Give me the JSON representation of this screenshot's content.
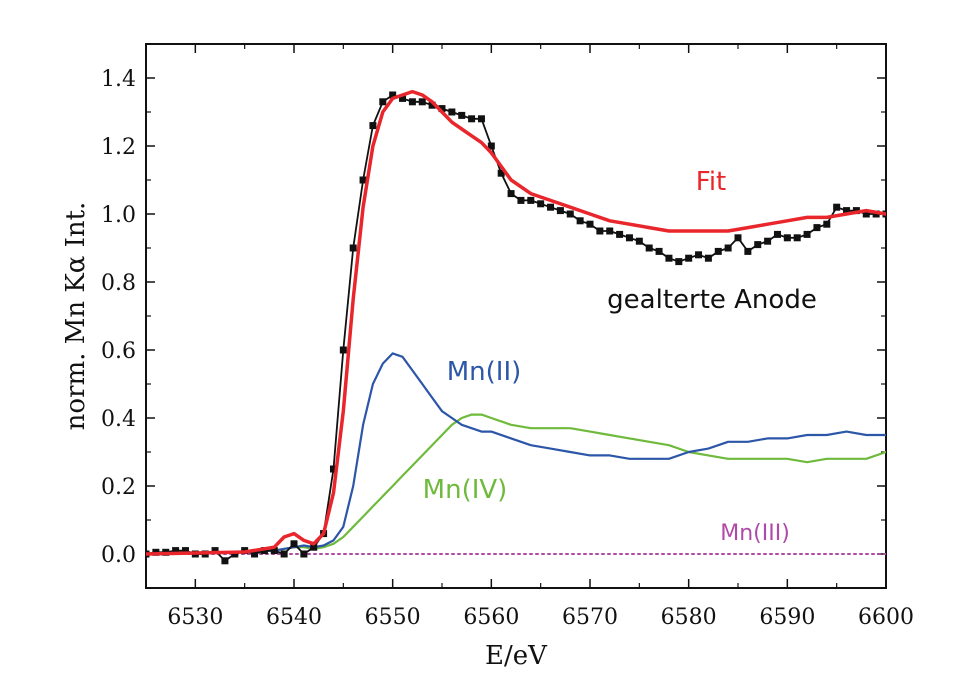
{
  "chart_data": {
    "type": "line",
    "title": "",
    "xlabel": "E/eV",
    "ylabel": "norm. Mn Kα Int.",
    "xlim": [
      6525,
      6600
    ],
    "ylim": [
      -0.1,
      1.5
    ],
    "x_ticks": [
      "6530",
      "6540",
      "6550",
      "6560",
      "6570",
      "6580",
      "6590",
      "6600"
    ],
    "y_ticks": [
      "0.0",
      "0.2",
      "0.4",
      "0.6",
      "0.8",
      "1.0",
      "1.2",
      "1.4"
    ],
    "grid": false,
    "legend": "none",
    "annotations": [
      {
        "text": "Fit",
        "color": "#e8262b",
        "series": "Fit"
      },
      {
        "text": "gealterte Anode",
        "color": "#111111",
        "series": "gealterte Anode"
      },
      {
        "text": "Mn(II)",
        "color": "#2c56a8",
        "series": "Mn(II)"
      },
      {
        "text": "Mn(IV)",
        "color": "#6fba3c",
        "series": "Mn(IV)"
      },
      {
        "text": "Mn(III)",
        "color": "#b04aa8",
        "series": "Mn(III)"
      }
    ],
    "series": [
      {
        "name": "gealterte Anode",
        "color": "#111111",
        "style": "line+markers",
        "x": [
          6525,
          6526,
          6527,
          6528,
          6529,
          6530,
          6531,
          6532,
          6533,
          6534,
          6535,
          6536,
          6537,
          6538,
          6539,
          6540,
          6541,
          6542,
          6543,
          6544,
          6545,
          6546,
          6547,
          6548,
          6549,
          6550,
          6551,
          6552,
          6553,
          6554,
          6555,
          6556,
          6557,
          6558,
          6559,
          6560,
          6561,
          6562,
          6563,
          6564,
          6565,
          6566,
          6567,
          6568,
          6569,
          6570,
          6571,
          6572,
          6573,
          6574,
          6575,
          6576,
          6577,
          6578,
          6579,
          6580,
          6581,
          6582,
          6583,
          6584,
          6585,
          6586,
          6587,
          6588,
          6589,
          6590,
          6591,
          6592,
          6593,
          6594,
          6595,
          6596,
          6597,
          6598,
          6599,
          6600
        ],
        "y": [
          0.0,
          0.005,
          0.005,
          0.01,
          0.01,
          0.0,
          0.0,
          0.01,
          -0.02,
          0.0,
          0.01,
          0.0,
          0.01,
          0.01,
          0.0,
          0.03,
          0.0,
          0.02,
          0.06,
          0.25,
          0.6,
          0.9,
          1.1,
          1.26,
          1.33,
          1.35,
          1.34,
          1.33,
          1.33,
          1.32,
          1.31,
          1.3,
          1.29,
          1.28,
          1.28,
          1.2,
          1.12,
          1.06,
          1.04,
          1.04,
          1.03,
          1.02,
          1.01,
          1.0,
          0.98,
          0.97,
          0.95,
          0.95,
          0.94,
          0.93,
          0.92,
          0.9,
          0.89,
          0.87,
          0.86,
          0.87,
          0.88,
          0.87,
          0.89,
          0.9,
          0.93,
          0.89,
          0.91,
          0.92,
          0.94,
          0.93,
          0.93,
          0.94,
          0.96,
          0.97,
          1.02,
          1.01,
          1.01,
          1.0,
          1.0,
          1.0
        ]
      },
      {
        "name": "Fit",
        "color": "#e8262b",
        "style": "line",
        "x": [
          6525,
          6530,
          6535,
          6538,
          6539,
          6540,
          6541,
          6542,
          6543,
          6544,
          6545,
          6546,
          6547,
          6548,
          6549,
          6550,
          6551,
          6552,
          6553,
          6554,
          6555,
          6556,
          6557,
          6558,
          6559,
          6560,
          6561,
          6562,
          6564,
          6566,
          6568,
          6570,
          6572,
          6574,
          6576,
          6578,
          6580,
          6582,
          6584,
          6586,
          6588,
          6590,
          6592,
          6594,
          6596,
          6598,
          6600
        ],
        "y": [
          0.0,
          0.003,
          0.006,
          0.02,
          0.05,
          0.06,
          0.04,
          0.03,
          0.06,
          0.18,
          0.42,
          0.75,
          1.02,
          1.2,
          1.3,
          1.34,
          1.35,
          1.36,
          1.35,
          1.33,
          1.3,
          1.27,
          1.25,
          1.23,
          1.21,
          1.18,
          1.14,
          1.1,
          1.06,
          1.04,
          1.02,
          1.0,
          0.98,
          0.97,
          0.96,
          0.95,
          0.95,
          0.95,
          0.95,
          0.96,
          0.97,
          0.98,
          0.99,
          0.99,
          1.0,
          1.01,
          1.0
        ]
      },
      {
        "name": "Mn(II)",
        "color": "#2c56a8",
        "style": "line",
        "x": [
          6525,
          6530,
          6535,
          6538,
          6540,
          6541,
          6542,
          6543,
          6544,
          6545,
          6546,
          6547,
          6548,
          6549,
          6550,
          6551,
          6552,
          6553,
          6554,
          6555,
          6556,
          6557,
          6558,
          6559,
          6560,
          6562,
          6564,
          6566,
          6568,
          6570,
          6572,
          6574,
          6576,
          6578,
          6580,
          6582,
          6584,
          6586,
          6588,
          6590,
          6592,
          6594,
          6596,
          6598,
          6600
        ],
        "y": [
          0.0,
          0.003,
          0.006,
          0.01,
          0.02,
          0.025,
          0.02,
          0.025,
          0.04,
          0.08,
          0.2,
          0.38,
          0.5,
          0.56,
          0.59,
          0.58,
          0.54,
          0.5,
          0.46,
          0.42,
          0.4,
          0.38,
          0.37,
          0.36,
          0.36,
          0.34,
          0.32,
          0.31,
          0.3,
          0.29,
          0.29,
          0.28,
          0.28,
          0.28,
          0.3,
          0.31,
          0.33,
          0.33,
          0.34,
          0.34,
          0.35,
          0.35,
          0.36,
          0.35,
          0.35
        ]
      },
      {
        "name": "Mn(IV)",
        "color": "#6fba3c",
        "style": "line",
        "x": [
          6525,
          6530,
          6535,
          6538,
          6540,
          6541,
          6542,
          6543,
          6544,
          6545,
          6546,
          6547,
          6548,
          6549,
          6550,
          6551,
          6552,
          6553,
          6554,
          6555,
          6556,
          6557,
          6558,
          6559,
          6560,
          6562,
          6564,
          6566,
          6568,
          6570,
          6572,
          6574,
          6576,
          6578,
          6580,
          6582,
          6584,
          6586,
          6588,
          6590,
          6592,
          6594,
          6596,
          6598,
          6600
        ],
        "y": [
          0.0,
          0.003,
          0.006,
          0.01,
          0.02,
          0.02,
          0.015,
          0.02,
          0.03,
          0.05,
          0.08,
          0.11,
          0.14,
          0.17,
          0.2,
          0.23,
          0.26,
          0.29,
          0.32,
          0.35,
          0.38,
          0.4,
          0.41,
          0.41,
          0.4,
          0.38,
          0.37,
          0.37,
          0.37,
          0.36,
          0.35,
          0.34,
          0.33,
          0.32,
          0.3,
          0.29,
          0.28,
          0.28,
          0.28,
          0.28,
          0.27,
          0.28,
          0.28,
          0.28,
          0.3
        ]
      },
      {
        "name": "Mn(III)",
        "color": "#b04aa8",
        "style": "dotted",
        "x": [
          6525,
          6600
        ],
        "y": [
          0.0,
          0.0
        ]
      }
    ]
  }
}
